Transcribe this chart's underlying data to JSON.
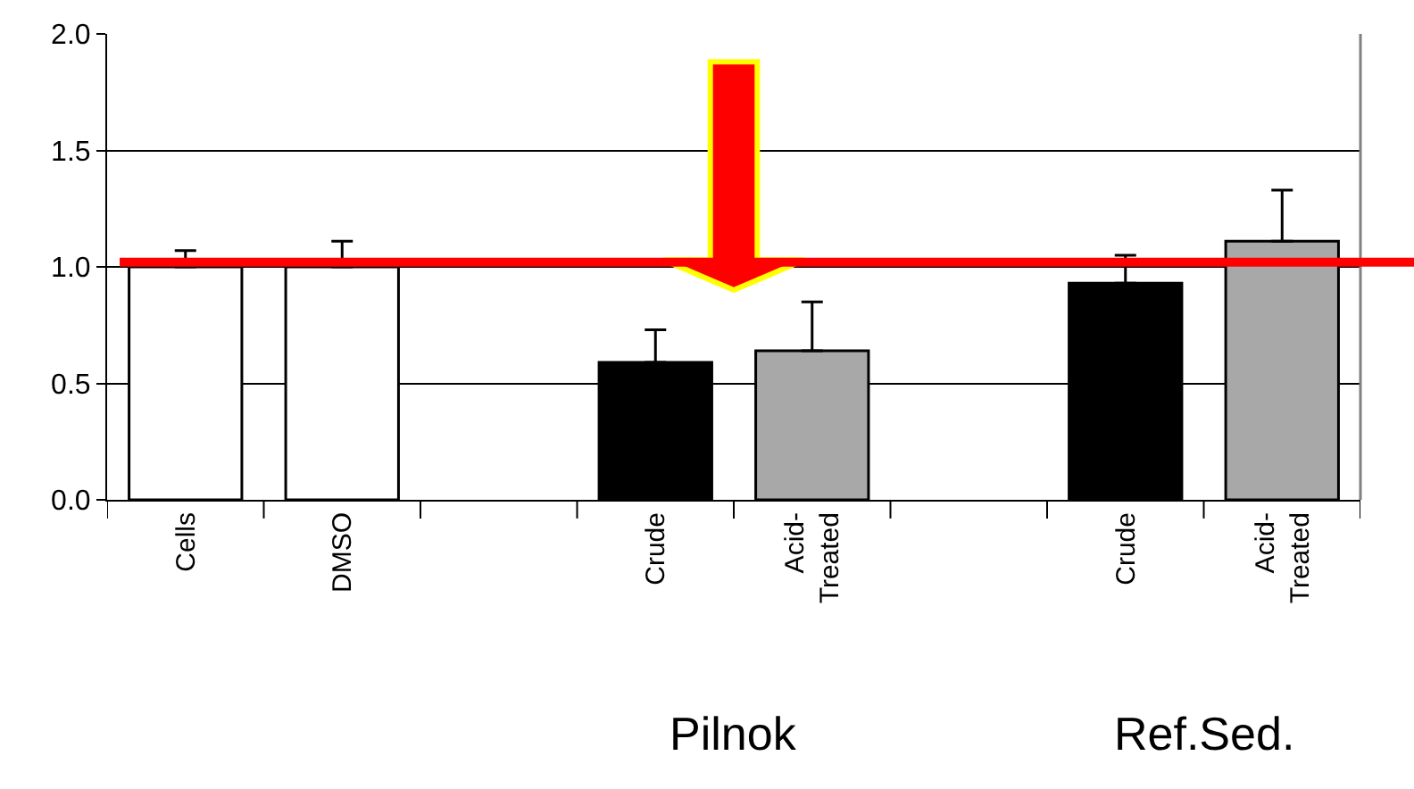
{
  "chart_data": {
    "type": "bar",
    "categories": [
      "Cells",
      "DMSO",
      null,
      "Crude",
      "Acid-Treated",
      null,
      "Crude",
      "Acid-Treated"
    ],
    "values": [
      1.0,
      1.0,
      null,
      0.59,
      0.64,
      null,
      0.93,
      1.11
    ],
    "colors": [
      "#ffffff",
      "#ffffff",
      "#ffffff",
      "#000000",
      "#a8a8a8",
      "#ffffff",
      "#000000",
      "#a8a8a8"
    ],
    "errors": [
      [
        1.0,
        1.07
      ],
      [
        1.0,
        1.11
      ],
      null,
      [
        0.59,
        0.73
      ],
      [
        0.64,
        0.85
      ],
      null,
      [
        0.93,
        1.05
      ],
      [
        1.11,
        1.33
      ]
    ],
    "ylim": [
      0,
      2.0
    ],
    "yticks": [
      {
        "value": 0,
        "label": "0.0"
      },
      0.5,
      {
        "value": 1,
        "label": "1.0"
      },
      1.5,
      {
        "value": 2,
        "label": "2.0"
      }
    ],
    "grid": "y",
    "ref_lines": [
      {
        "axis": "y",
        "value": 1.02,
        "color": "#ff0000"
      }
    ],
    "annotations": [
      "Pilnok",
      "Ref.Sed."
    ]
  }
}
